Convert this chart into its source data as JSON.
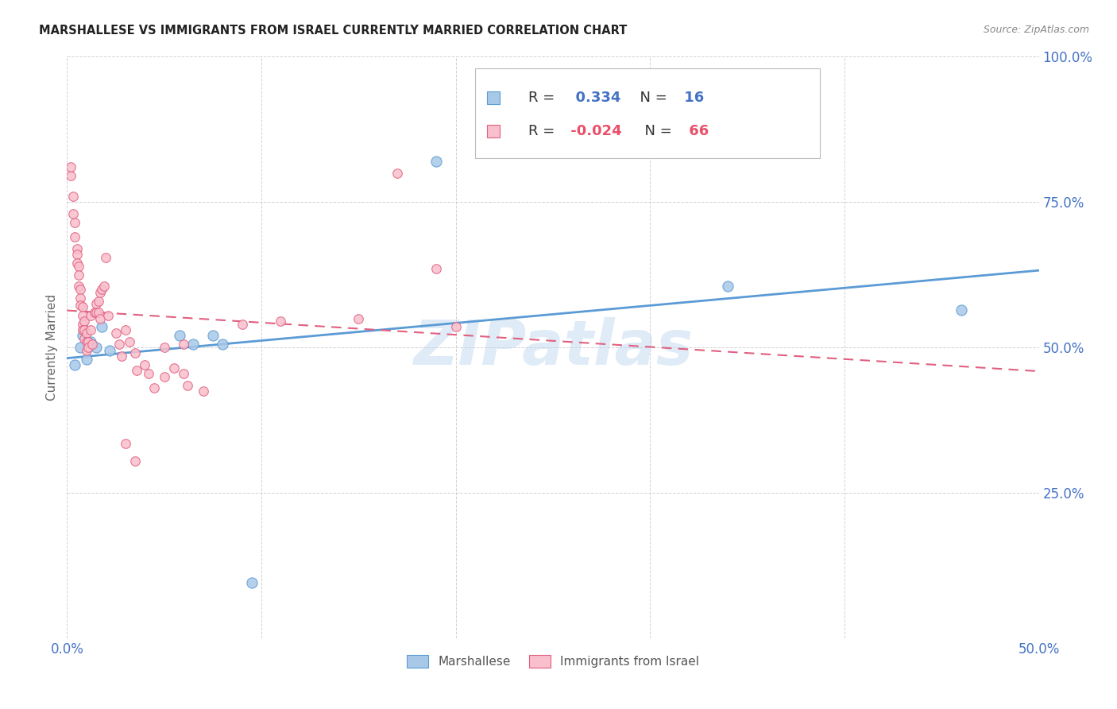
{
  "title": "MARSHALLESE VS IMMIGRANTS FROM ISRAEL CURRENTLY MARRIED CORRELATION CHART",
  "source": "Source: ZipAtlas.com",
  "ylabel_label": "Currently Married",
  "xlim": [
    0.0,
    0.5
  ],
  "ylim": [
    0.0,
    1.0
  ],
  "xticks": [
    0.0,
    0.1,
    0.2,
    0.3,
    0.4,
    0.5
  ],
  "xtick_labels": [
    "0.0%",
    "",
    "",
    "",
    "",
    "50.0%"
  ],
  "ytick_positions": [
    0.0,
    0.25,
    0.5,
    0.75,
    1.0
  ],
  "ytick_labels": [
    "",
    "25.0%",
    "50.0%",
    "75.0%",
    "100.0%"
  ],
  "series1_fill": "#a8c8e8",
  "series2_fill": "#f9bfcc",
  "line1_color": "#5b9bd5",
  "line2_color": "#e06080",
  "legend_series1_label": "Marshallese",
  "legend_series2_label": "Immigrants from Israel",
  "R1": "0.334",
  "N1": "16",
  "R2": "-0.024",
  "N2": "66",
  "watermark": "ZIPatlas",
  "blue_text_color": "#4472c4",
  "pink_text_color": "#e8506a",
  "title_color": "#222222",
  "source_color": "#888888",
  "ylabel_color": "#666666",
  "grid_color": "#cccccc",
  "tick_color": "#4472c4",
  "marshallese_points": [
    [
      0.004,
      0.47
    ],
    [
      0.007,
      0.5
    ],
    [
      0.008,
      0.52
    ],
    [
      0.01,
      0.48
    ],
    [
      0.012,
      0.51
    ],
    [
      0.015,
      0.5
    ],
    [
      0.018,
      0.535
    ],
    [
      0.022,
      0.495
    ],
    [
      0.058,
      0.52
    ],
    [
      0.065,
      0.505
    ],
    [
      0.075,
      0.52
    ],
    [
      0.08,
      0.505
    ],
    [
      0.19,
      0.82
    ],
    [
      0.34,
      0.605
    ],
    [
      0.46,
      0.565
    ],
    [
      0.095,
      0.095
    ]
  ],
  "israel_points": [
    [
      0.002,
      0.795
    ],
    [
      0.002,
      0.81
    ],
    [
      0.003,
      0.76
    ],
    [
      0.003,
      0.73
    ],
    [
      0.004,
      0.715
    ],
    [
      0.004,
      0.69
    ],
    [
      0.005,
      0.67
    ],
    [
      0.005,
      0.66
    ],
    [
      0.005,
      0.645
    ],
    [
      0.006,
      0.64
    ],
    [
      0.006,
      0.625
    ],
    [
      0.006,
      0.605
    ],
    [
      0.007,
      0.6
    ],
    [
      0.007,
      0.585
    ],
    [
      0.007,
      0.572
    ],
    [
      0.008,
      0.57
    ],
    [
      0.008,
      0.555
    ],
    [
      0.008,
      0.54
    ],
    [
      0.008,
      0.53
    ],
    [
      0.009,
      0.545
    ],
    [
      0.009,
      0.53
    ],
    [
      0.009,
      0.515
    ],
    [
      0.01,
      0.525
    ],
    [
      0.01,
      0.51
    ],
    [
      0.01,
      0.495
    ],
    [
      0.011,
      0.51
    ],
    [
      0.011,
      0.5
    ],
    [
      0.012,
      0.555
    ],
    [
      0.012,
      0.53
    ],
    [
      0.013,
      0.505
    ],
    [
      0.014,
      0.56
    ],
    [
      0.015,
      0.575
    ],
    [
      0.015,
      0.56
    ],
    [
      0.016,
      0.58
    ],
    [
      0.016,
      0.56
    ],
    [
      0.017,
      0.595
    ],
    [
      0.017,
      0.55
    ],
    [
      0.018,
      0.6
    ],
    [
      0.019,
      0.605
    ],
    [
      0.02,
      0.655
    ],
    [
      0.021,
      0.555
    ],
    [
      0.025,
      0.525
    ],
    [
      0.027,
      0.505
    ],
    [
      0.028,
      0.485
    ],
    [
      0.03,
      0.335
    ],
    [
      0.03,
      0.53
    ],
    [
      0.032,
      0.51
    ],
    [
      0.035,
      0.305
    ],
    [
      0.035,
      0.49
    ],
    [
      0.036,
      0.46
    ],
    [
      0.04,
      0.47
    ],
    [
      0.042,
      0.455
    ],
    [
      0.045,
      0.43
    ],
    [
      0.05,
      0.5
    ],
    [
      0.05,
      0.45
    ],
    [
      0.055,
      0.465
    ],
    [
      0.06,
      0.505
    ],
    [
      0.06,
      0.455
    ],
    [
      0.062,
      0.435
    ],
    [
      0.07,
      0.425
    ],
    [
      0.09,
      0.54
    ],
    [
      0.11,
      0.545
    ],
    [
      0.15,
      0.55
    ],
    [
      0.17,
      0.8
    ],
    [
      0.19,
      0.635
    ],
    [
      0.2,
      0.535
    ]
  ]
}
